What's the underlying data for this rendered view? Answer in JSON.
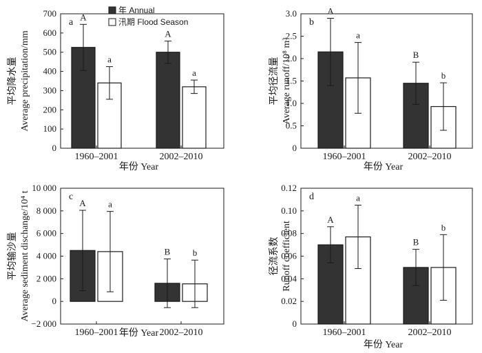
{
  "legend": {
    "annual_label": "年 Annual",
    "flood_label": "汛期 Flood Season"
  },
  "colors": {
    "annual": "#333333",
    "flood": "#ffffff",
    "stroke": "#1a1a1a"
  },
  "chart_data": [
    {
      "type": "bar",
      "panel": "a",
      "categories": [
        "1960–2001",
        "2002–2010"
      ],
      "series": [
        {
          "name": "年 Annual",
          "values": [
            525,
            500
          ],
          "errors": [
            120,
            58
          ],
          "letters": [
            "A",
            "A"
          ]
        },
        {
          "name": "汛期 Flood Season",
          "values": [
            340,
            320
          ],
          "errors": [
            85,
            35
          ],
          "letters": [
            "a",
            "a"
          ]
        }
      ],
      "ylim": [
        0,
        700
      ],
      "yticks": [
        0,
        100,
        200,
        300,
        400,
        500,
        600,
        700
      ],
      "ytick_labels": [
        "0",
        "100",
        "200",
        "300",
        "400",
        "500",
        "600",
        "700"
      ],
      "ylabel_cn": "平均降水量",
      "ylabel_en": "Average precipitation/mm",
      "xlabel": "年份 Year"
    },
    {
      "type": "bar",
      "panel": "b",
      "categories": [
        "1960–2001",
        "2002–2010"
      ],
      "series": [
        {
          "name": "年 Annual",
          "values": [
            2.15,
            1.45
          ],
          "errors": [
            0.75,
            0.47
          ],
          "letters": [
            "A",
            "B"
          ]
        },
        {
          "name": "汛期 Flood Season",
          "values": [
            1.57,
            0.93
          ],
          "errors": [
            0.79,
            0.53
          ],
          "letters": [
            "a",
            "b"
          ]
        }
      ],
      "ylim": [
        0,
        3.0
      ],
      "yticks": [
        0,
        0.5,
        1.0,
        1.5,
        2.0,
        2.5,
        3.0
      ],
      "ytick_labels": [
        "0",
        "0.5",
        "1.0",
        "1.5",
        "2.0",
        "2.5",
        "3.0"
      ],
      "ylabel_cn": "平均径流量",
      "ylabel_en": "Average runoff/10⁸ m³",
      "xlabel": "年份 Year"
    },
    {
      "type": "bar",
      "panel": "c",
      "categories": [
        "1960–2001",
        "2002–2010"
      ],
      "series": [
        {
          "name": "年 Annual",
          "values": [
            4500,
            1600
          ],
          "errors": [
            3550,
            2150
          ],
          "letters": [
            "A",
            "B"
          ]
        },
        {
          "name": "汛期 Flood Season",
          "values": [
            4400,
            1550
          ],
          "errors": [
            3550,
            2100
          ],
          "letters": [
            "a",
            "b"
          ]
        }
      ],
      "ylim": [
        -2000,
        10000
      ],
      "yticks": [
        -2000,
        0,
        2000,
        4000,
        6000,
        8000,
        10000
      ],
      "ytick_labels": [
        "−2 000",
        "0",
        "2 000",
        "4 000",
        "6 000",
        "8 000",
        "10 000"
      ],
      "ylabel_cn": "平均输沙量",
      "ylabel_en": "Average sediment dischange/10⁴ t",
      "xlabel": "年份 Year"
    },
    {
      "type": "bar",
      "panel": "d",
      "categories": [
        "1960–2001",
        "2002–2010"
      ],
      "series": [
        {
          "name": "年 Annual",
          "values": [
            0.07,
            0.05
          ],
          "errors": [
            0.016,
            0.016
          ],
          "letters": [
            "A",
            "B"
          ]
        },
        {
          "name": "汛期 Flood Season",
          "values": [
            0.077,
            0.05
          ],
          "errors": [
            0.028,
            0.029
          ],
          "letters": [
            "a",
            "b"
          ]
        }
      ],
      "ylim": [
        0,
        0.12
      ],
      "yticks": [
        0,
        0.02,
        0.04,
        0.06,
        0.08,
        0.1,
        0.12
      ],
      "ytick_labels": [
        "0",
        "0.02",
        "0.04",
        "0.06",
        "0.08",
        "0.10",
        "0.12"
      ],
      "ylabel_cn": "径流系数",
      "ylabel_en": "Runoff coefficient",
      "xlabel": "年份 Year"
    }
  ]
}
